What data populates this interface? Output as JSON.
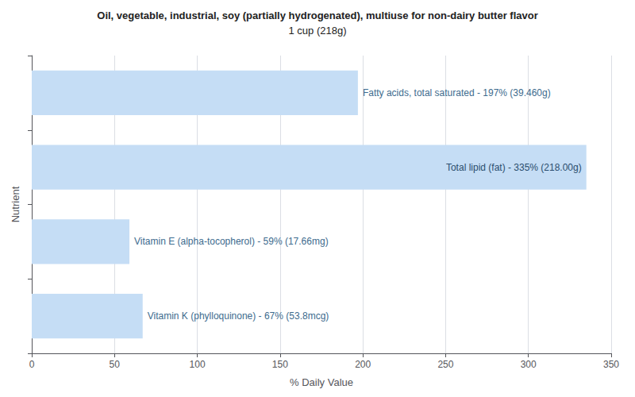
{
  "chart_data": {
    "type": "bar",
    "orientation": "horizontal",
    "title": "Oil, vegetable, industrial, soy (partially hydrogenated), multiuse for non-dairy butter flavor",
    "subtitle": "1 cup (218g)",
    "categories": [
      "Fatty acids, total saturated - 197% (39.460g)",
      "Total lipid (fat) - 335% (218.00g)",
      "Vitamin E (alpha-tocopherol) - 59% (17.66mg)",
      "Vitamin K (phylloquinone) - 67% (53.8mcg)"
    ],
    "values": [
      197,
      335,
      59,
      67
    ],
    "color": "#c5ddf5",
    "xlabel": "% Daily Value",
    "ylabel": "Nutrient",
    "xlim": [
      0,
      350
    ],
    "xticks": [
      0,
      50,
      100,
      150,
      200,
      250,
      300,
      350
    ],
    "grid": true,
    "tick_labels": "x"
  }
}
